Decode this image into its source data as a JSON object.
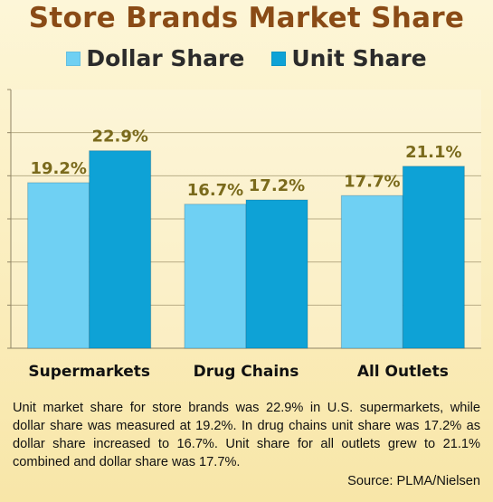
{
  "chart_data": {
    "type": "bar",
    "title": "Store Brands Market Share",
    "categories": [
      "Supermarkets",
      "Drug Chains",
      "All Outlets"
    ],
    "series": [
      {
        "name": "Dollar Share",
        "values": [
          19.2,
          16.7,
          17.7
        ],
        "color": "#6fd0f3"
      },
      {
        "name": "Unit Share",
        "values": [
          22.9,
          17.2,
          21.1
        ],
        "color": "#0ea2d6"
      }
    ],
    "value_labels": [
      [
        "19.2%",
        "16.7%",
        "17.7%"
      ],
      [
        "22.9%",
        "17.2%",
        "21.1%"
      ]
    ],
    "ylim": [
      0,
      30
    ],
    "grid": true,
    "legend_position": "top",
    "label_color": "#7a6a1c"
  },
  "description": "Unit market share for store brands was 22.9% in U.S. supermarkets, while dollar share was measured at 19.2%. In drug chains unit share was 17.2% as dollar share increased to 16.7%. Unit share for all outlets grew to 21.1% combined and dollar share was 17.7%.",
  "source": "Source: PLMA/Nielsen"
}
